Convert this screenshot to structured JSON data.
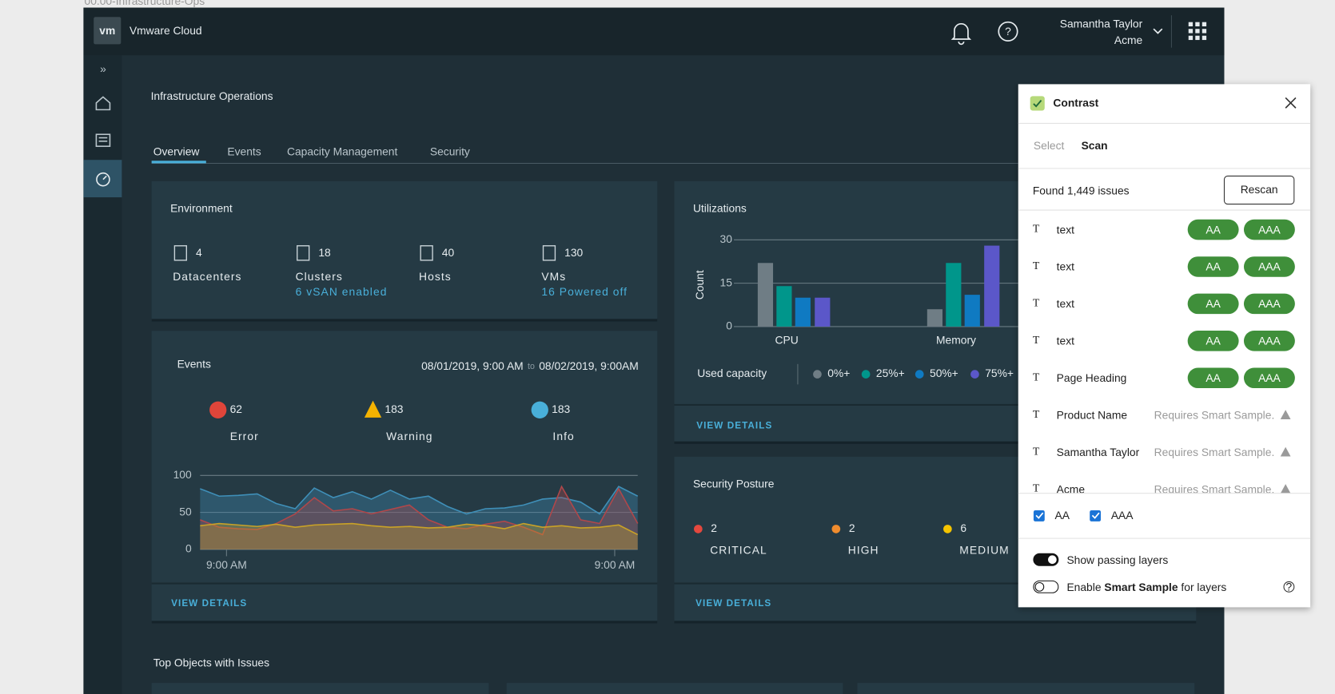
{
  "file_label": "00.00-Infrastructure-Ops",
  "header": {
    "logo": "vm",
    "product": "Vmware Cloud",
    "user_name": "Samantha Taylor",
    "org": "Acme"
  },
  "page_title": "Infrastructure Operations",
  "tabs": [
    "Overview",
    "Events",
    "Capacity Management",
    "Security"
  ],
  "environment": {
    "title": "Environment",
    "stats": [
      {
        "value": 4,
        "label": "Datacenters"
      },
      {
        "value": 18,
        "label": "Clusters",
        "note": "6 vSAN enabled"
      },
      {
        "value": 40,
        "label": "Hosts"
      },
      {
        "value": 130,
        "label": "VMs",
        "note": "16 Powered off"
      }
    ]
  },
  "events": {
    "title": "Events",
    "range_start": "08/01/2019, 9:00 AM",
    "range_sep": "to",
    "range_end": "08/02/2019, 9:00AM",
    "counts": [
      {
        "value": 62,
        "label": "Error",
        "color": "#e0453a"
      },
      {
        "value": 183,
        "label": "Warning",
        "color": "#f5b301"
      },
      {
        "value": 183,
        "label": "Info",
        "color": "#49afd9"
      }
    ],
    "chart": {
      "type": "area",
      "ylim": [
        0,
        100
      ],
      "yticks": [
        0,
        50,
        100
      ],
      "xtick_labels": [
        "9:00 AM",
        "9:00 AM"
      ],
      "series": [
        {
          "color": "#3f8fb8",
          "values": [
            82,
            72,
            73,
            75,
            62,
            55,
            83,
            70,
            78,
            68,
            80,
            68,
            72,
            58,
            48,
            55,
            56,
            60,
            68,
            70,
            64,
            48,
            85,
            72
          ]
        },
        {
          "color": "#b0474a",
          "values": [
            40,
            30,
            28,
            27,
            35,
            48,
            70,
            52,
            55,
            48,
            54,
            60,
            40,
            30,
            28,
            34,
            38,
            30,
            20,
            85,
            40,
            35,
            82,
            35
          ]
        },
        {
          "color": "#c9a227",
          "values": [
            32,
            35,
            33,
            31,
            34,
            30,
            33,
            34,
            35,
            32,
            30,
            31,
            29,
            30,
            34,
            32,
            28,
            35,
            30,
            32,
            29,
            30,
            33,
            20
          ]
        }
      ]
    },
    "link": "VIEW DETAILS"
  },
  "utilization": {
    "title": "Utilizations",
    "chart": {
      "type": "bar",
      "y_label": "Count",
      "categories": [
        "CPU",
        "Memory"
      ],
      "ylim": [
        0,
        30
      ],
      "yticks": [
        0,
        15,
        30
      ],
      "legend_title": "Used capacity",
      "series": [
        {
          "name": "0%+",
          "color": "#6f7d85",
          "values": [
            22,
            6
          ]
        },
        {
          "name": "25%+",
          "color": "#00968b",
          "values": [
            14,
            22
          ]
        },
        {
          "name": "50%+",
          "color": "#0f7ac2",
          "values": [
            10,
            11
          ]
        },
        {
          "name": "75%+",
          "color": "#5b57c9",
          "values": [
            10,
            28
          ]
        }
      ]
    },
    "link": "VIEW DETAILS"
  },
  "security": {
    "title": "Security Posture",
    "counts": [
      {
        "value": 2,
        "label": "CRITICAL",
        "color": "#e5483e"
      },
      {
        "value": 2,
        "label": "HIGH",
        "color": "#f08c2e"
      },
      {
        "value": 6,
        "label": "MEDIUM",
        "color": "#f5c400"
      }
    ],
    "link": "VIEW DETAILS"
  },
  "top_objects": {
    "title": "Top Objects with Issues"
  },
  "contrast_panel": {
    "title": "Contrast",
    "modes": [
      "Select",
      "Scan"
    ],
    "found": "Found 1,449 issues",
    "rescan": "Rescan",
    "rows": [
      {
        "label": "text",
        "badges": [
          "AA",
          "AAA"
        ]
      },
      {
        "label": "text",
        "badges": [
          "AA",
          "AAA"
        ]
      },
      {
        "label": "text",
        "badges": [
          "AA",
          "AAA"
        ]
      },
      {
        "label": "text",
        "badges": [
          "AA",
          "AAA"
        ]
      },
      {
        "label": "Page Heading",
        "badges": [
          "AA",
          "AAA"
        ]
      },
      {
        "label": "Product Name",
        "status": "Requires Smart Sample."
      },
      {
        "label": "Samantha Taylor",
        "status": "Requires Smart Sample."
      },
      {
        "label": "Acme",
        "status": "Requires Smart Sample."
      }
    ],
    "filters": [
      "AA",
      "AAA"
    ],
    "toggles": [
      {
        "parts": [
          "Show passing layers"
        ]
      },
      {
        "parts": [
          "Enable ",
          "Smart Sample",
          " for layers"
        ]
      }
    ]
  }
}
